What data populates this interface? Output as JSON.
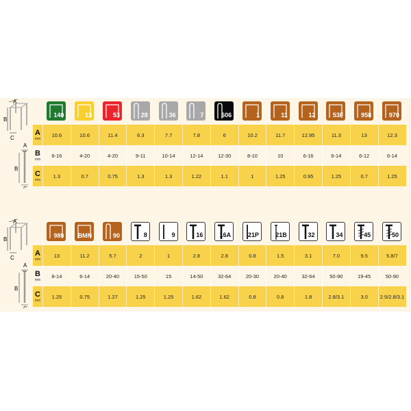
{
  "row_labels": [
    {
      "letter": "A",
      "unit": "mm"
    },
    {
      "letter": "B",
      "unit": "mm"
    },
    {
      "letter": "C",
      "unit": "mm"
    }
  ],
  "diagram_labels": {
    "a": "A",
    "b": "B",
    "c": "C"
  },
  "tables": [
    {
      "items": [
        {
          "label": "140",
          "shape": "staple",
          "color": "#1f7a2f",
          "A": "10.6",
          "B": "6-16",
          "C": "1.3"
        },
        {
          "label": "13",
          "shape": "staple",
          "color": "#f8cf2f",
          "A": "10.6",
          "B": "4-20",
          "C": "0.7"
        },
        {
          "label": "53",
          "shape": "staple",
          "color": "#e8262b",
          "A": "11.4",
          "B": "4-20",
          "C": "0.75"
        },
        {
          "label": "28",
          "shape": "narrow",
          "color": "#a8a8a8",
          "A": "6.3",
          "B": "9-11",
          "C": "1.3"
        },
        {
          "label": "36",
          "shape": "narrow",
          "color": "#a8a8a8",
          "A": "7.7",
          "B": "10-14",
          "C": "1.3"
        },
        {
          "label": "7",
          "shape": "narrow",
          "color": "#a8a8a8",
          "A": "7.8",
          "B": "12-14",
          "C": "1.22"
        },
        {
          "label": "606",
          "shape": "narrow",
          "color": "#0a0a0a",
          "A": "6",
          "B": "12-30",
          "C": "1.1"
        },
        {
          "label": "1",
          "shape": "staple",
          "color": "#b4631e",
          "A": "10.2",
          "B": "8-10",
          "C": "1"
        },
        {
          "label": "11",
          "shape": "staple",
          "color": "#b4631e",
          "A": "11.7",
          "B": "10",
          "C": "1.25"
        },
        {
          "label": "12",
          "shape": "staple",
          "color": "#b4631e",
          "A": "12.95",
          "B": "6-16",
          "C": "0.95"
        },
        {
          "label": "53F",
          "shape": "staple",
          "color": "#b4631e",
          "A": "11.3",
          "B": "6-14",
          "C": "1.25"
        },
        {
          "label": "958",
          "shape": "staple",
          "color": "#b4631e",
          "A": "13",
          "B": "6-12",
          "C": "0.7"
        },
        {
          "label": "970",
          "shape": "staple",
          "color": "#b4631e",
          "A": "12.3",
          "B": "6-14",
          "C": "1.25"
        }
      ]
    },
    {
      "items": [
        {
          "label": "980",
          "shape": "staple",
          "color": "#b4631e",
          "A": "13",
          "B": "8-14",
          "C": "1.25"
        },
        {
          "label": "BMN",
          "shape": "staple",
          "color": "#b4631e",
          "A": "11.2",
          "B": "6-14",
          "C": "0.75"
        },
        {
          "label": "90",
          "shape": "narrow",
          "color": "#b4631e",
          "A": "5.7",
          "B": "20-40",
          "C": "1.27"
        },
        {
          "label": "8",
          "shape": "nail",
          "color": "#ffffff",
          "A": "2",
          "B": "15-50",
          "C": "1.25"
        },
        {
          "label": "9",
          "shape": "pin",
          "color": "#ffffff",
          "A": "1",
          "B": "15",
          "C": "1.25"
        },
        {
          "label": "16",
          "shape": "nail",
          "color": "#ffffff",
          "A": "2.8",
          "B": "14-50",
          "C": "1.62"
        },
        {
          "label": "16A",
          "shape": "nail",
          "color": "#ffffff",
          "A": "2.8",
          "B": "32-64",
          "C": "1.62"
        },
        {
          "label": "21P",
          "shape": "pin",
          "color": "#ffffff",
          "A": "0.8",
          "B": "20-30",
          "C": "0.8"
        },
        {
          "label": "21B",
          "shape": "brad",
          "color": "#ffffff",
          "A": "1.5",
          "B": "20-40",
          "C": "0.8"
        },
        {
          "label": "32",
          "shape": "nail",
          "color": "#ffffff",
          "A": "3.1",
          "B": "32-64",
          "C": "1.8"
        },
        {
          "label": "34",
          "shape": "nail",
          "color": "#ffffff",
          "A": "7.0",
          "B": "50-90",
          "C": "2.8/3.1"
        },
        {
          "label": "45",
          "shape": "ringnail",
          "color": "#ffffff",
          "A": "9.5",
          "B": "19-45",
          "C": "3.0"
        },
        {
          "label": "50",
          "shape": "ringnail",
          "color": "#ffffff",
          "A": "5.8/7",
          "B": "50-90",
          "C": "2.5/2.8/3.1"
        }
      ]
    }
  ]
}
